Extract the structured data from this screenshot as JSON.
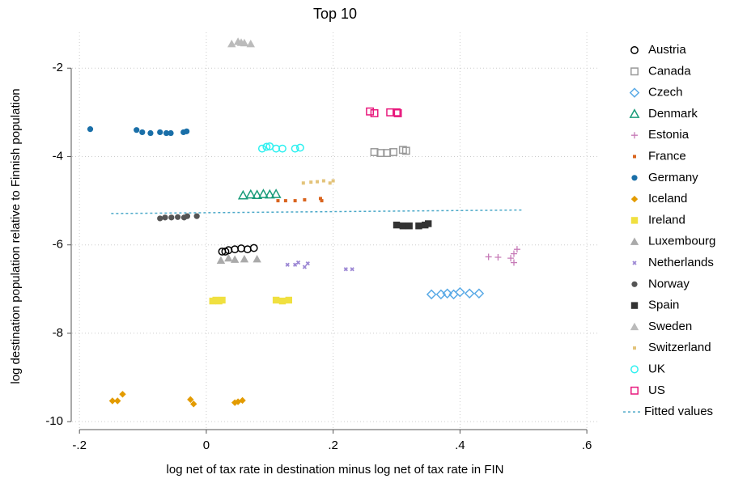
{
  "chart_data": {
    "type": "scatter",
    "title": "Top 10",
    "x_label": "log net of tax rate in destination minus log net of tax rate in FIN",
    "y_label": "log destination population relative to Finnish population",
    "xlim": [
      -0.213,
      0.619
    ],
    "ylim": [
      -10.18,
      -1.19
    ],
    "xticks": [
      {
        "value": -0.2,
        "label": "-.2"
      },
      0,
      {
        "value": 0.2,
        "label": ".2"
      },
      {
        "value": 0.4,
        "label": ".4"
      },
      {
        "value": 0.6,
        "label": ".6"
      }
    ],
    "yticks": [
      -2,
      -4,
      -6,
      -8,
      -10
    ],
    "grid": true,
    "legend": "right",
    "series": [
      {
        "name": "Austria",
        "color": "#000000",
        "marker": "circle-open",
        "x": [
          0.025,
          0.03,
          0.035,
          0.045,
          0.055,
          0.065,
          0.075
        ],
        "values": [
          -6.15,
          -6.15,
          -6.12,
          -6.1,
          -6.08,
          -6.1,
          -6.07
        ]
      },
      {
        "name": "Canada",
        "color": "#999999",
        "marker": "square-open",
        "x": [
          0.265,
          0.275,
          0.285,
          0.295,
          0.31,
          0.315
        ],
        "values": [
          -3.9,
          -3.92,
          -3.92,
          -3.9,
          -3.85,
          -3.87
        ]
      },
      {
        "name": "Czech",
        "color": "#5aaae6",
        "marker": "diamond-open",
        "x": [
          0.355,
          0.37,
          0.38,
          0.39,
          0.4,
          0.415,
          0.43
        ],
        "values": [
          -7.12,
          -7.12,
          -7.1,
          -7.12,
          -7.07,
          -7.1,
          -7.1
        ]
      },
      {
        "name": "Denmark",
        "color": "#1a9c7a",
        "marker": "triangle-open",
        "x": [
          0.058,
          0.07,
          0.08,
          0.09,
          0.1,
          0.11
        ],
        "values": [
          -4.88,
          -4.86,
          -4.87,
          -4.85,
          -4.86,
          -4.85
        ]
      },
      {
        "name": "Estonia",
        "color": "#c77cb8",
        "marker": "plus",
        "x": [
          0.445,
          0.46,
          0.48,
          0.485,
          0.49,
          0.485
        ],
        "values": [
          -6.27,
          -6.28,
          -6.3,
          -6.2,
          -6.1,
          -6.4
        ]
      },
      {
        "name": "France",
        "color": "#d9641e",
        "marker": "square-small",
        "x": [
          0.113,
          0.125,
          0.14,
          0.155,
          0.18,
          0.182
        ],
        "values": [
          -5.0,
          -5.0,
          -5.0,
          -4.98,
          -4.95,
          -5.0
        ]
      },
      {
        "name": "Germany",
        "color": "#1a6fa8",
        "marker": "circle",
        "x": [
          -0.183,
          -0.11,
          -0.101,
          -0.088,
          -0.073,
          -0.063,
          -0.056,
          -0.036,
          -0.031
        ],
        "values": [
          -3.38,
          -3.4,
          -3.45,
          -3.47,
          -3.45,
          -3.47,
          -3.47,
          -3.45,
          -3.43
        ]
      },
      {
        "name": "Iceland",
        "color": "#e39b00",
        "marker": "diamond",
        "x": [
          -0.148,
          -0.14,
          -0.132,
          -0.025,
          -0.02,
          0.045,
          0.05,
          0.057
        ],
        "values": [
          -9.53,
          -9.53,
          -9.38,
          -9.5,
          -9.6,
          -9.57,
          -9.55,
          -9.52
        ]
      },
      {
        "name": "Ireland",
        "color": "#f0e040",
        "marker": "square",
        "x": [
          0.01,
          0.015,
          0.02,
          0.025,
          0.11,
          0.12,
          0.13
        ],
        "values": [
          -7.27,
          -7.25,
          -7.27,
          -7.25,
          -7.25,
          -7.27,
          -7.25
        ]
      },
      {
        "name": "Luxembourg",
        "color": "#aaaaaa",
        "marker": "triangle",
        "x": [
          0.023,
          0.035,
          0.045,
          0.06,
          0.08
        ],
        "values": [
          -6.35,
          -6.3,
          -6.33,
          -6.32,
          -6.32
        ]
      },
      {
        "name": "Netherlands",
        "color": "#9c87d4",
        "marker": "x-small",
        "x": [
          0.128,
          0.14,
          0.145,
          0.155,
          0.16,
          0.22,
          0.23
        ],
        "values": [
          -6.45,
          -6.45,
          -6.4,
          -6.5,
          -6.42,
          -6.55,
          -6.55
        ]
      },
      {
        "name": "Norway",
        "color": "#555555",
        "marker": "circle",
        "x": [
          -0.073,
          -0.065,
          -0.055,
          -0.045,
          -0.035,
          -0.03,
          -0.015
        ],
        "values": [
          -5.4,
          -5.38,
          -5.38,
          -5.37,
          -5.38,
          -5.35,
          -5.35
        ]
      },
      {
        "name": "Spain",
        "color": "#333333",
        "marker": "square",
        "x": [
          0.3,
          0.31,
          0.32,
          0.335,
          0.345,
          0.35
        ],
        "values": [
          -5.55,
          -5.57,
          -5.57,
          -5.57,
          -5.55,
          -5.52
        ]
      },
      {
        "name": "Sweden",
        "color": "#bbbbbb",
        "marker": "triangle",
        "x": [
          0.04,
          0.05,
          0.055,
          0.06,
          0.07
        ],
        "values": [
          -1.45,
          -1.4,
          -1.42,
          -1.43,
          -1.45
        ]
      },
      {
        "name": "Switzerland",
        "color": "#e3c37a",
        "marker": "square-small",
        "x": [
          0.153,
          0.165,
          0.175,
          0.185,
          0.195,
          0.2
        ],
        "values": [
          -4.6,
          -4.58,
          -4.57,
          -4.55,
          -4.6,
          -4.55
        ]
      },
      {
        "name": "UK",
        "color": "#2ef0f0",
        "marker": "circle-open",
        "x": [
          0.088,
          0.095,
          0.1,
          0.11,
          0.12,
          0.14,
          0.148
        ],
        "values": [
          -3.82,
          -3.78,
          -3.77,
          -3.82,
          -3.82,
          -3.82,
          -3.8
        ]
      },
      {
        "name": "US",
        "color": "#e8197d",
        "marker": "square-open",
        "x": [
          0.258,
          0.265,
          0.29,
          0.3,
          0.302
        ],
        "values": [
          -2.98,
          -3.02,
          -3.0,
          -3.0,
          -3.02
        ]
      },
      {
        "name": "Fitted values",
        "color": "#4aa8c8",
        "marker": "dashed-line",
        "x": [
          -0.15,
          0.5
        ],
        "values": [
          -5.29,
          -5.21
        ]
      }
    ]
  }
}
